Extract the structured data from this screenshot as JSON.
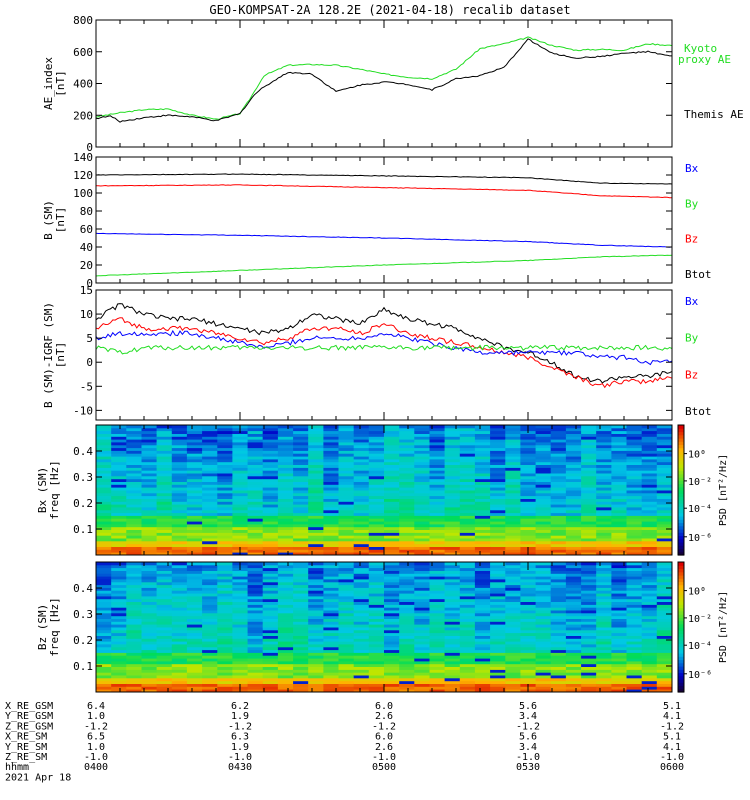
{
  "title": "GEO-KOMPSAT-2A 128.2E (2021-04-18) recalib dataset",
  "colors": {
    "black": "#000000",
    "green": "#22dd22",
    "red": "#ff0000",
    "blue": "#0000ff"
  },
  "chart_data": [
    {
      "type": "line",
      "ylabel": "AE_index [nT]",
      "ylim": [
        0,
        800
      ],
      "yticks": [
        0,
        200,
        400,
        600,
        800
      ],
      "xlim": [
        0,
        120
      ],
      "legend": [
        {
          "name": "Kyoto proxy AE",
          "color": "#22dd22"
        },
        {
          "name": "Themis AE",
          "color": "#000000"
        }
      ],
      "series": [
        {
          "name": "Kyoto proxy AE",
          "color": "#22dd22",
          "x": [
            0,
            5,
            10,
            15,
            20,
            25,
            30,
            32,
            35,
            40,
            45,
            50,
            55,
            60,
            65,
            70,
            75,
            80,
            85,
            90,
            95,
            100,
            105,
            110,
            115,
            120
          ],
          "y": [
            190,
            215,
            235,
            240,
            200,
            175,
            210,
            300,
            450,
            515,
            520,
            515,
            490,
            460,
            440,
            430,
            490,
            620,
            650,
            690,
            640,
            610,
            615,
            610,
            650,
            640
          ]
        },
        {
          "name": "Themis AE",
          "color": "#000000",
          "x": [
            0,
            3,
            5,
            10,
            15,
            20,
            25,
            30,
            33,
            35,
            40,
            45,
            50,
            55,
            60,
            65,
            70,
            75,
            80,
            85,
            90,
            95,
            100,
            105,
            110,
            115,
            120
          ],
          "y": [
            180,
            195,
            160,
            185,
            200,
            190,
            165,
            210,
            330,
            380,
            470,
            460,
            350,
            390,
            410,
            395,
            360,
            430,
            450,
            500,
            680,
            590,
            560,
            570,
            590,
            600,
            570
          ]
        }
      ]
    },
    {
      "type": "line",
      "ylabel": "B (SM) [nT]",
      "ylim": [
        0,
        140
      ],
      "yticks": [
        0,
        20,
        40,
        60,
        80,
        100,
        120,
        140
      ],
      "legend": [
        {
          "name": "Bx",
          "color": "#0000ff"
        },
        {
          "name": "By",
          "color": "#22dd22"
        },
        {
          "name": "Bz",
          "color": "#ff0000"
        },
        {
          "name": "Btot",
          "color": "#000000"
        }
      ],
      "series": [
        {
          "name": "Btot",
          "color": "#000000",
          "x": [
            0,
            30,
            60,
            90,
            105,
            120
          ],
          "y": [
            120,
            121,
            119,
            117,
            111,
            110
          ]
        },
        {
          "name": "Bz",
          "color": "#ff0000",
          "x": [
            0,
            30,
            60,
            90,
            105,
            120
          ],
          "y": [
            108,
            109,
            106,
            103,
            97,
            95
          ]
        },
        {
          "name": "Bx",
          "color": "#0000ff",
          "x": [
            0,
            30,
            60,
            90,
            105,
            120
          ],
          "y": [
            55,
            53,
            50,
            46,
            42,
            40
          ]
        },
        {
          "name": "By",
          "color": "#22dd22",
          "x": [
            0,
            30,
            60,
            90,
            105,
            120
          ],
          "y": [
            8,
            14,
            20,
            25,
            29,
            31
          ]
        }
      ]
    },
    {
      "type": "line",
      "ylabel": "B (SM)-IGRF (SM) [nT]",
      "ylim": [
        -12,
        15
      ],
      "yticks": [
        -10,
        -5,
        0,
        5,
        10,
        15
      ],
      "legend": [
        {
          "name": "Bx",
          "color": "#0000ff"
        },
        {
          "name": "By",
          "color": "#22dd22"
        },
        {
          "name": "Bz",
          "color": "#ff0000"
        },
        {
          "name": "Btot",
          "color": "#000000"
        }
      ],
      "series": [
        {
          "name": "Btot",
          "color": "#000000",
          "x": [
            0,
            5,
            10,
            15,
            20,
            25,
            30,
            35,
            40,
            45,
            50,
            55,
            60,
            65,
            70,
            75,
            80,
            85,
            90,
            95,
            100,
            105,
            110,
            115,
            120
          ],
          "y": [
            9,
            12,
            10,
            9,
            9,
            8,
            7,
            6,
            7,
            10,
            9,
            8,
            11,
            9,
            8,
            7,
            5,
            3,
            2,
            0,
            -3,
            -4,
            -3,
            -3,
            -2
          ]
        },
        {
          "name": "Bz",
          "color": "#ff0000",
          "x": [
            0,
            5,
            10,
            15,
            20,
            25,
            30,
            35,
            40,
            45,
            50,
            55,
            60,
            65,
            70,
            75,
            80,
            85,
            90,
            95,
            100,
            105,
            110,
            115,
            120
          ],
          "y": [
            7,
            9,
            7,
            7,
            7,
            6,
            5,
            4,
            5,
            7,
            7,
            6,
            8,
            6,
            5,
            4,
            3,
            2,
            1,
            -1,
            -3,
            -5,
            -4,
            -4,
            -3
          ]
        },
        {
          "name": "Bx",
          "color": "#0000ff",
          "x": [
            0,
            5,
            10,
            15,
            20,
            25,
            30,
            35,
            40,
            45,
            50,
            55,
            60,
            65,
            70,
            75,
            80,
            85,
            90,
            95,
            100,
            105,
            110,
            115,
            120
          ],
          "y": [
            5,
            6,
            6,
            6,
            6,
            5,
            4,
            3,
            4,
            5,
            5,
            5,
            6,
            5,
            4,
            3,
            2,
            2,
            2,
            2,
            2,
            1,
            1,
            0,
            0
          ]
        },
        {
          "name": "By",
          "color": "#22dd22",
          "x": [
            0,
            5,
            10,
            15,
            20,
            25,
            30,
            35,
            40,
            45,
            50,
            55,
            60,
            65,
            70,
            75,
            80,
            85,
            90,
            95,
            100,
            105,
            110,
            115,
            120
          ],
          "y": [
            3,
            2,
            3,
            3,
            3,
            3,
            3,
            3,
            3,
            3,
            3,
            3,
            3,
            3,
            3,
            3,
            3,
            3,
            3,
            3,
            3,
            3,
            3,
            3,
            3
          ]
        }
      ]
    },
    {
      "type": "heatmap",
      "ylabel": "Bx (SM) freq [Hz]",
      "ylim": [
        0,
        0.5
      ],
      "yticks": [
        0.1,
        0.2,
        0.3,
        0.4
      ],
      "colorbar_label": "PSD [nT²/Hz]",
      "colorbar_ticks": [
        "10⁰",
        "10⁻²",
        "10⁻⁴",
        "10⁻⁶"
      ]
    },
    {
      "type": "heatmap",
      "ylabel": "Bz (SM) freq [Hz]",
      "ylim": [
        0,
        0.5
      ],
      "yticks": [
        0.1,
        0.2,
        0.3,
        0.4
      ],
      "colorbar_label": "PSD [nT²/Hz]",
      "colorbar_ticks": [
        "10⁰",
        "10⁻²",
        "10⁻⁴",
        "10⁻⁶"
      ]
    }
  ],
  "ephemeris": {
    "rows": [
      {
        "label": "X_RE_GSM",
        "values": [
          "6.4",
          "6.2",
          "6.0",
          "5.6",
          "5.1"
        ]
      },
      {
        "label": "Y_RE_GSM",
        "values": [
          "1.0",
          "1.9",
          "2.6",
          "3.4",
          "4.1"
        ]
      },
      {
        "label": "Z_RE_GSM",
        "values": [
          "-1.2",
          "-1.2",
          "-1.2",
          "-1.2",
          "-1.2"
        ]
      },
      {
        "label": "X_RE_SM",
        "values": [
          "6.5",
          "6.3",
          "6.0",
          "5.6",
          "5.1"
        ]
      },
      {
        "label": "Y_RE_SM",
        "values": [
          "1.0",
          "1.9",
          "2.6",
          "3.4",
          "4.1"
        ]
      },
      {
        "label": "Z_RE_SM",
        "values": [
          "-1.0",
          "-1.0",
          "-1.0",
          "-1.0",
          "-1.0"
        ]
      },
      {
        "label": "hhmm",
        "values": [
          "0400",
          "0430",
          "0500",
          "0530",
          "0600"
        ]
      }
    ],
    "date": "2021 Apr 18"
  }
}
